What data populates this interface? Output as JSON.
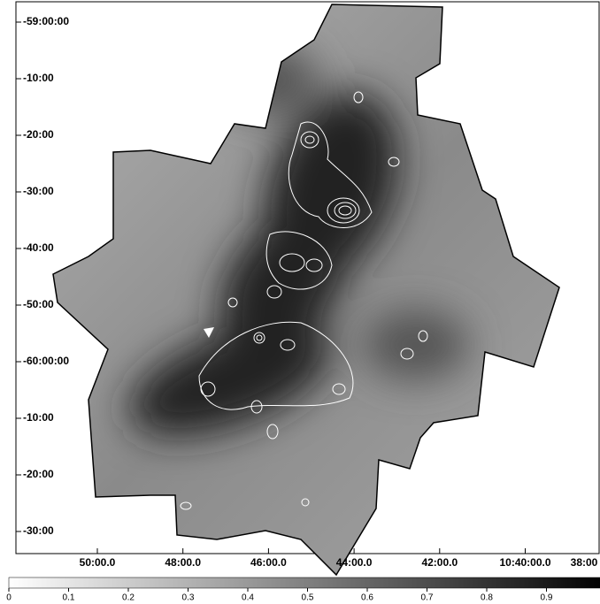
{
  "y_axis": {
    "labels": [
      "-59:00:00",
      "-10:00",
      "-20:00",
      "-30:00",
      "-40:00",
      "-50:00",
      "-60:00:00",
      "-10:00",
      "-20:00",
      "-30:00"
    ]
  },
  "x_axis": {
    "labels": [
      "50:00.0",
      "48:00.0",
      "46:00.0",
      "44:00.0",
      "42:00.0",
      "10:40:00.0",
      "38:00"
    ]
  },
  "colorbar": {
    "lim": [
      0,
      1
    ],
    "ticks": [
      0,
      0.1,
      0.2,
      0.3,
      0.4,
      0.5,
      0.6,
      0.7,
      0.8,
      0.9
    ]
  }
}
